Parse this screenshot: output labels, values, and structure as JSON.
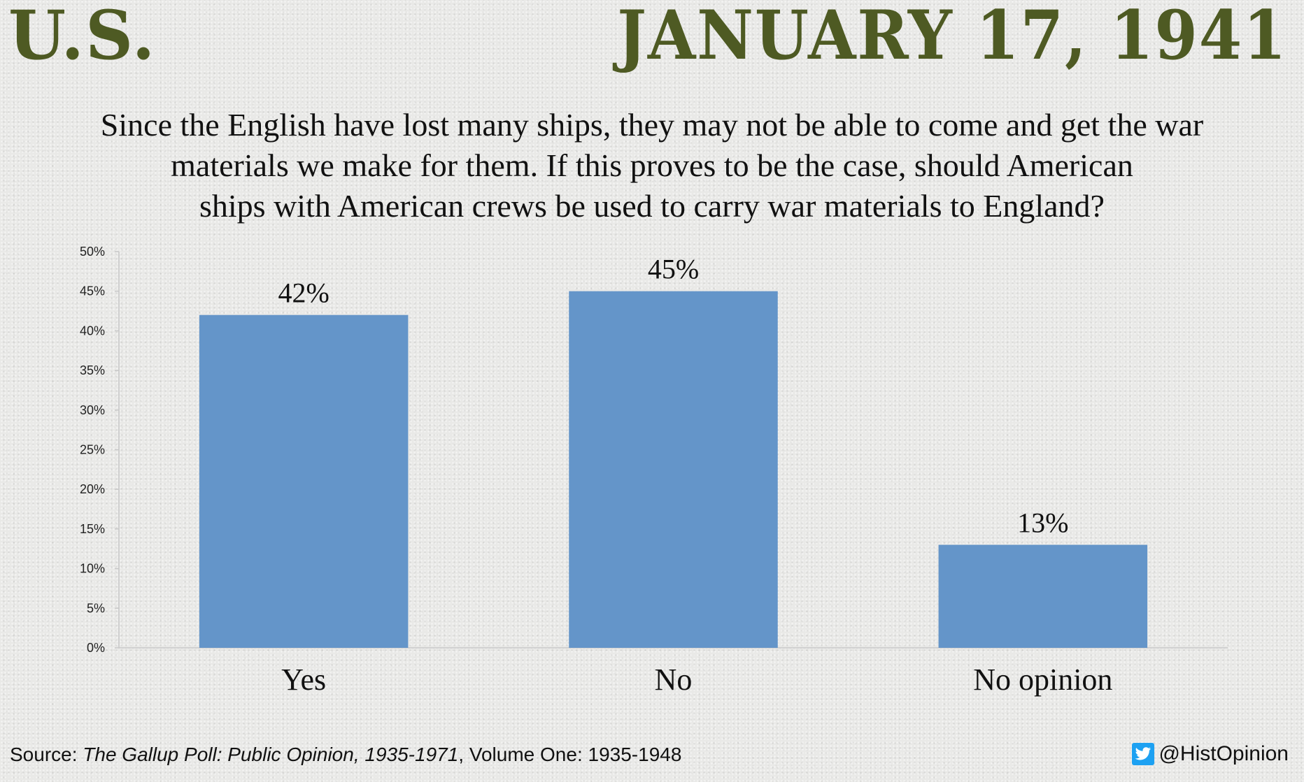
{
  "header": {
    "left": "U.S.",
    "right": "JANUARY 17, 1941"
  },
  "question": {
    "line1": "Since the English have lost many ships, they may not be able to come and get the war",
    "line2": "materials we make for them. If this proves to be the case, should American",
    "line3": "ships with American crews be used to carry war materials to England?"
  },
  "chart_data": {
    "type": "bar",
    "categories": [
      "Yes",
      "No",
      "No opinion"
    ],
    "values": [
      42,
      45,
      13
    ],
    "value_labels": [
      "42%",
      "45%",
      "13%"
    ],
    "ylim": [
      0,
      50
    ],
    "yticks": [
      0,
      5,
      10,
      15,
      20,
      25,
      30,
      35,
      40,
      45,
      50
    ],
    "ytick_labels": [
      "0%",
      "5%",
      "10%",
      "15%",
      "20%",
      "25%",
      "30%",
      "35%",
      "40%",
      "45%",
      "50%"
    ],
    "grid": false,
    "legend": "none",
    "bar_color": "#6495c9"
  },
  "footer": {
    "source_prefix": "Source: ",
    "source_title": "The Gallup Poll: Public Opinion, 1935-1971",
    "source_suffix": ", Volume One: 1935-1948",
    "handle": "@HistOpinion",
    "twitter_icon": "twitter-bird-icon"
  }
}
